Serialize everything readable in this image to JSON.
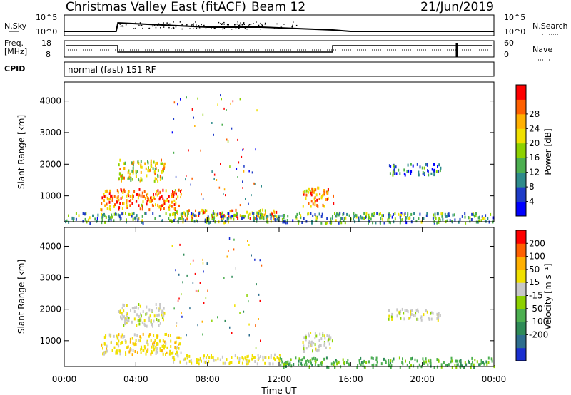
{
  "header": {
    "station": "Christmas Valley East (fitACF)",
    "beam": "Beam 12",
    "date": "21/Jun/2019"
  },
  "strip": {
    "nsky_label": "N.Sky",
    "nsky_ticks": [
      "10^5",
      "10^0"
    ],
    "nsearch_label": "N.Search",
    "nsearch_ticks": [
      "10^5",
      "10^0"
    ],
    "freq_label": "Freq.",
    "freq_unit": "[MHz]",
    "freq_ticks": [
      "18",
      "8"
    ],
    "nave_label": "Nave",
    "nave_ticks": [
      "60",
      "0"
    ],
    "cpid_label": "CPID",
    "cpid_value": "normal (fast) 151 RF"
  },
  "chart_data": [
    {
      "type": "heatmap",
      "name": "power",
      "ylabel": "Slant Range [km]",
      "yticks": [
        "1000",
        "2000",
        "3000",
        "4000"
      ],
      "ylim": [
        180,
        4600
      ],
      "xlim": [
        0,
        24
      ],
      "colorbar_label": "Power [dB]",
      "colorbar_ticks": [
        "4",
        "8",
        "12",
        "16",
        "20",
        "24",
        "28"
      ],
      "colorbar_colors": [
        "#0000ff",
        "#1e3cc8",
        "#2e8b8b",
        "#4caf50",
        "#8dd100",
        "#f0e000",
        "#ffb000",
        "#ff6000",
        "#ff0000"
      ],
      "regions": [
        {
          "t": [
            3.0,
            5.6
          ],
          "r": [
            1500,
            2200
          ],
          "level": 0.6
        },
        {
          "t": [
            2.0,
            6.5
          ],
          "r": [
            600,
            1250
          ],
          "level": 0.8
        },
        {
          "t": [
            6.0,
            12.0
          ],
          "r": [
            300,
            600
          ],
          "level": 0.7
        },
        {
          "t": [
            13.3,
            15.0
          ],
          "r": [
            700,
            1300
          ],
          "level": 0.75
        },
        {
          "t": [
            18.0,
            21.0
          ],
          "r": [
            1700,
            2050
          ],
          "level": 0.25
        },
        {
          "t": [
            0.0,
            24.0
          ],
          "r": [
            180,
            500
          ],
          "level": 0.35
        }
      ]
    },
    {
      "type": "heatmap",
      "name": "velocity",
      "xlabel": "Time UT",
      "xticks": [
        "00:00",
        "04:00",
        "08:00",
        "12:00",
        "16:00",
        "20:00",
        "00:00"
      ],
      "ylabel": "Slant Range [km]",
      "yticks": [
        "1000",
        "2000",
        "3000",
        "4000"
      ],
      "ylim": [
        180,
        4600
      ],
      "xlim": [
        0,
        24
      ],
      "colorbar_label": "Velocity [m s⁻¹]",
      "colorbar_ticks": [
        "200",
        "100",
        "50",
        "15",
        "-15",
        "-50",
        "-100",
        "-200"
      ],
      "colorbar_colors": [
        "#1a2fd0",
        "#2e6e8e",
        "#2e8b57",
        "#4caf50",
        "#8dd100",
        "#c8c8c8",
        "#f0e000",
        "#ffb000",
        "#ff6000",
        "#ff0000"
      ],
      "regions": [
        {
          "t": [
            3.0,
            5.6
          ],
          "r": [
            1500,
            2200
          ],
          "level": 0.0
        },
        {
          "t": [
            2.0,
            6.5
          ],
          "r": [
            600,
            1250
          ],
          "level": 0.2
        },
        {
          "t": [
            6.0,
            12.0
          ],
          "r": [
            300,
            600
          ],
          "level": 0.15
        },
        {
          "t": [
            13.3,
            15.0
          ],
          "r": [
            700,
            1300
          ],
          "level": 0.0
        },
        {
          "t": [
            18.0,
            21.0
          ],
          "r": [
            1700,
            2050
          ],
          "level": 0.0
        },
        {
          "t": [
            12.0,
            24.0
          ],
          "r": [
            180,
            500
          ],
          "level": -0.4
        }
      ]
    }
  ]
}
